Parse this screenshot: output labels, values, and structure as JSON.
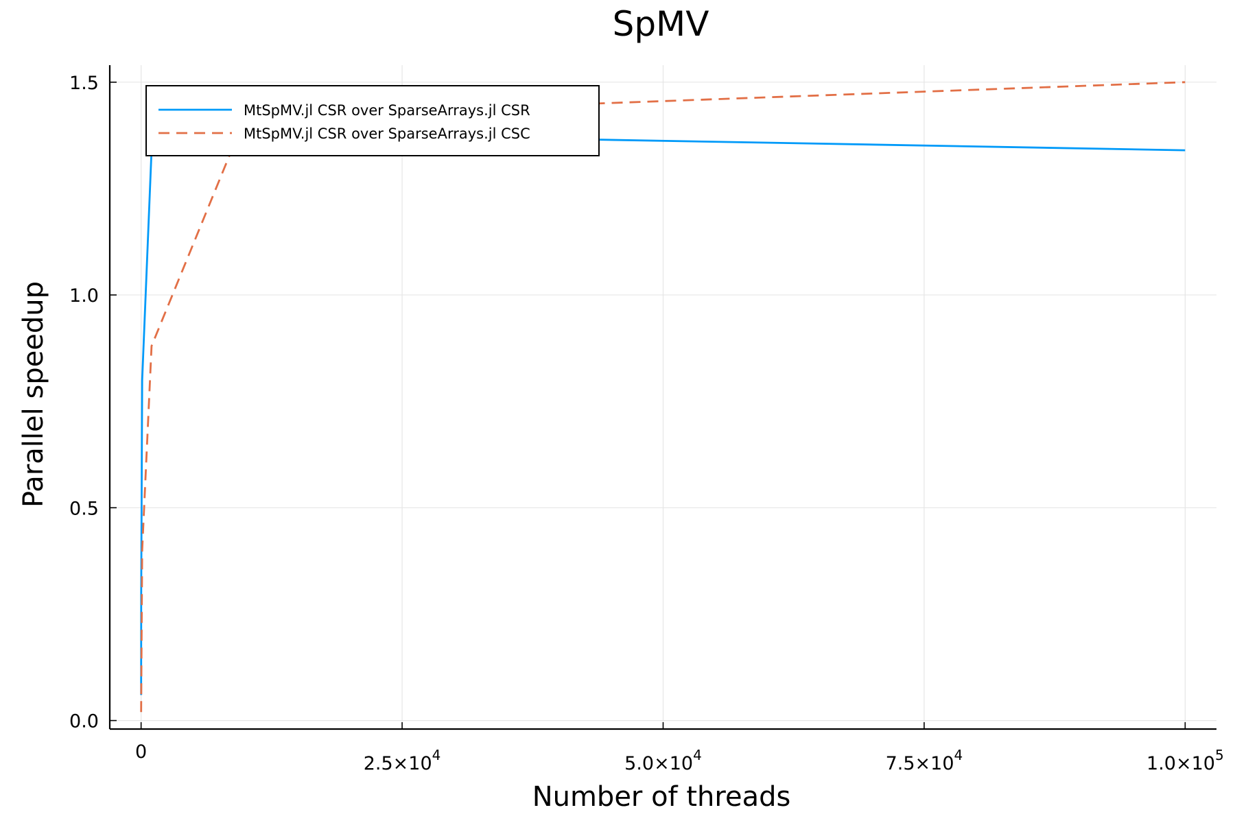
{
  "chart_data": {
    "type": "line",
    "title": "SpMV",
    "xlabel": "Number of threads",
    "ylabel": "Parallel speedup",
    "xlim": [
      -3000,
      103000
    ],
    "ylim": [
      -0.02,
      1.54
    ],
    "grid": true,
    "legend_position": "top-left",
    "x_ticks": [
      {
        "value": 0,
        "mantissa": "0",
        "exponent": ""
      },
      {
        "value": 25000,
        "mantissa": "2.5×10",
        "exponent": "4"
      },
      {
        "value": 50000,
        "mantissa": "5.0×10",
        "exponent": "4"
      },
      {
        "value": 75000,
        "mantissa": "7.5×10",
        "exponent": "4"
      },
      {
        "value": 100000,
        "mantissa": "1.0×10",
        "exponent": "5"
      }
    ],
    "y_ticks": [
      {
        "value": 0.0,
        "label": "0.0"
      },
      {
        "value": 0.5,
        "label": "0.5"
      },
      {
        "value": 1.0,
        "label": "1.0"
      },
      {
        "value": 1.5,
        "label": "1.5"
      }
    ],
    "series": [
      {
        "name": "MtSpMV.jl CSR over SparseArrays.jl CSR",
        "color": "#009af9",
        "dash": "solid",
        "x": [
          1,
          10,
          100,
          1000,
          10000,
          100000
        ],
        "y": [
          0.06,
          0.3,
          0.8,
          1.34,
          1.38,
          1.34
        ]
      },
      {
        "name": "MtSpMV.jl CSR over SparseArrays.jl CSC",
        "color": "#e26f46",
        "dash": "dashed",
        "x": [
          1,
          10,
          100,
          1000,
          10000,
          100000
        ],
        "y": [
          0.02,
          0.05,
          0.4,
          0.88,
          1.42,
          1.5
        ]
      }
    ]
  }
}
